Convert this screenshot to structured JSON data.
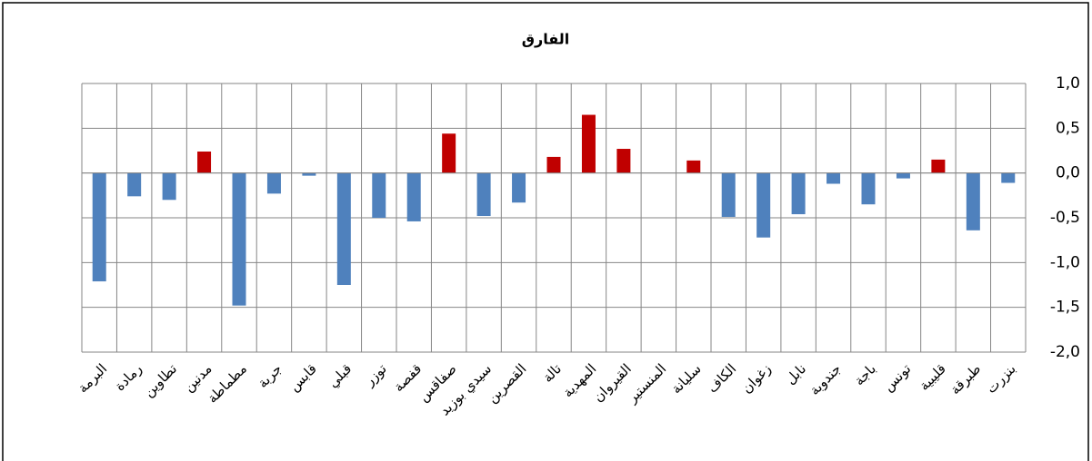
{
  "chart_data": {
    "type": "bar",
    "title": "الفارق",
    "categories": [
      "البرمة",
      "رمادة",
      "تطاوين",
      "مدنين",
      "مطماطة",
      "جربة",
      "قابس",
      "قبلي",
      "توزر",
      "قفصة",
      "صفاقس",
      "سيدي بوزيد",
      "القصرين",
      "تالة",
      "المهدية",
      "القيروان",
      "المنستير",
      "سليانة",
      "الكاف",
      "زغوان",
      "نابل",
      "جندوبة",
      "باجة",
      "تونس",
      "قليبية",
      "طبرقة",
      "بنزرت"
    ],
    "values": [
      -1.21,
      -0.26,
      -0.3,
      0.24,
      -1.48,
      -0.23,
      -0.03,
      -1.25,
      -0.5,
      -0.54,
      0.44,
      -0.48,
      -0.33,
      0.18,
      0.65,
      0.27,
      0,
      0.14,
      -0.49,
      -0.72,
      -0.46,
      -0.12,
      -0.35,
      -0.06,
      0.15,
      -0.64,
      -0.11
    ],
    "color": "#4f81bd",
    "positive_color": "#c00000",
    "ylim": [
      -2.0,
      1.0
    ],
    "yticks": [
      {
        "value": -2.0,
        "label": "-2,0"
      },
      {
        "value": -1.5,
        "label": "-1,5"
      },
      {
        "value": -1.0,
        "label": "-1,0"
      },
      {
        "value": -0.5,
        "label": "-0,5"
      },
      {
        "value": 0,
        "label": "0,0"
      },
      {
        "value": 0.5,
        "label": "0,5"
      },
      {
        "value": 1.0,
        "label": "1,0"
      }
    ],
    "grid": true
  }
}
